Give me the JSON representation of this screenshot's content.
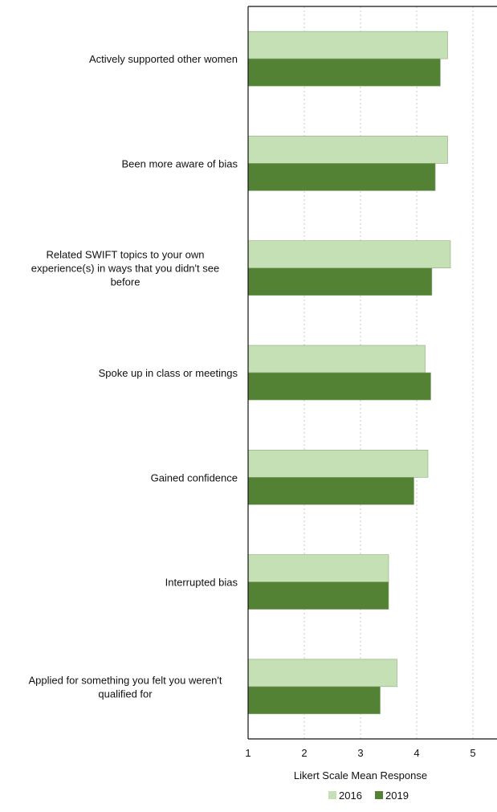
{
  "chart_data": {
    "type": "bar",
    "orientation": "horizontal",
    "categories": [
      "Actively supported other women",
      "Been more aware of bias",
      "Related SWIFT topics to your own experience(s) in ways that you didn't see before",
      "Spoke up in class or meetings",
      "Gained confidence",
      "Interrupted bias",
      "Applied for something you felt you weren't qualified for"
    ],
    "category_lines": [
      [
        "Actively supported other women"
      ],
      [
        "Been more aware of bias"
      ],
      [
        "Related SWIFT topics to your own",
        "experience(s) in ways that you didn't see",
        "before"
      ],
      [
        "Spoke up in class or meetings"
      ],
      [
        "Gained confidence"
      ],
      [
        "Interrupted bias"
      ],
      [
        "Applied for something you felt you weren't",
        "qualified for"
      ]
    ],
    "series": [
      {
        "name": "2016",
        "color": "#c5e0b4",
        "values": [
          4.55,
          4.55,
          4.6,
          4.15,
          4.2,
          3.5,
          3.65
        ]
      },
      {
        "name": "2019",
        "color": "#548235",
        "values": [
          4.42,
          4.33,
          4.27,
          4.25,
          3.95,
          3.5,
          3.35
        ]
      }
    ],
    "title": "",
    "xlabel": "Likert Scale Mean Response",
    "ylabel": "",
    "xlim": [
      1,
      5.4
    ],
    "xticks": [
      1,
      2,
      3,
      4,
      5
    ],
    "grid": "vertical dotted",
    "legend_position": "bottom"
  }
}
